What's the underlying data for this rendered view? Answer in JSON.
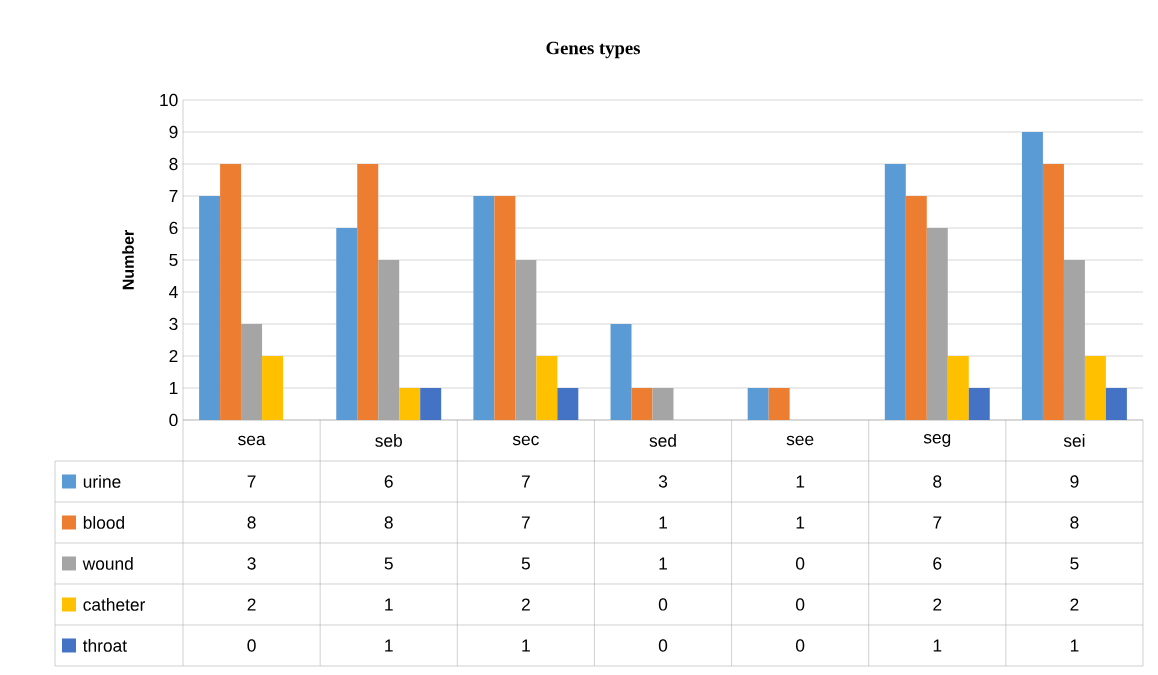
{
  "chart_data": {
    "type": "bar",
    "title": "Genes types",
    "ylabel": "Number",
    "categories": [
      "sea",
      "seb",
      "sec",
      "sed",
      "see",
      "seg",
      "sei"
    ],
    "series": [
      {
        "name": "urine",
        "color": "#5b9bd5",
        "values": [
          7,
          6,
          7,
          3,
          1,
          8,
          9
        ]
      },
      {
        "name": "blood",
        "color": "#ed7d31",
        "values": [
          8,
          8,
          7,
          1,
          1,
          7,
          8
        ]
      },
      {
        "name": "wound",
        "color": "#a5a5a5",
        "values": [
          3,
          5,
          5,
          1,
          0,
          6,
          5
        ]
      },
      {
        "name": "catheter",
        "color": "#ffc000",
        "values": [
          2,
          1,
          2,
          0,
          0,
          2,
          2
        ]
      },
      {
        "name": "throat",
        "color": "#4472c4",
        "values": [
          0,
          1,
          1,
          0,
          0,
          1,
          1
        ]
      }
    ],
    "ylim": [
      0,
      10
    ],
    "yticks": [
      0,
      1,
      2,
      3,
      4,
      5,
      6,
      7,
      8,
      9,
      10
    ],
    "grid": "y",
    "legend": "bottom",
    "data_labels": true
  }
}
